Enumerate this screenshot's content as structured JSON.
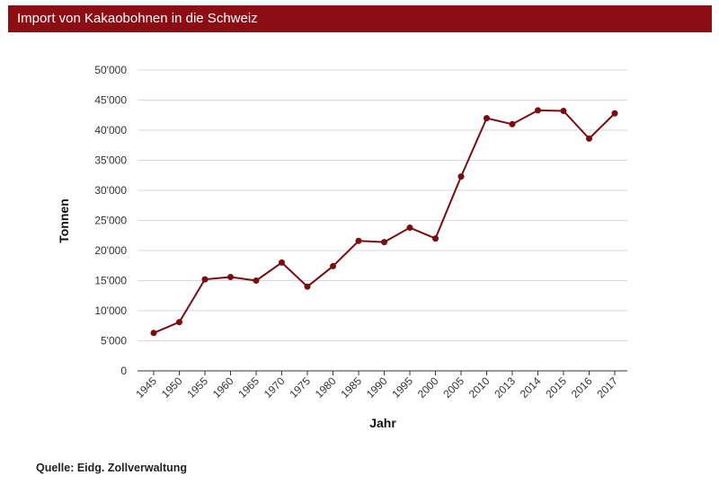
{
  "header": {
    "title": "Import von Kakaobohnen in die Schweiz"
  },
  "footer": {
    "source": "Quelle: Eidg. Zollverwaltung"
  },
  "colors": {
    "header_bg": "#8c0e14",
    "line": "#7a0c10",
    "grid": "#d9d9d9"
  },
  "chart_data": {
    "type": "line",
    "title": "Import von Kakaobohnen in die Schweiz",
    "xlabel": "Jahr",
    "ylabel": "Tonnen",
    "ylim": [
      0,
      50000
    ],
    "yticks": [
      0,
      5000,
      10000,
      15000,
      20000,
      25000,
      30000,
      35000,
      40000,
      45000,
      50000
    ],
    "ytick_labels": [
      "0",
      "5'000",
      "10'000",
      "15'000",
      "20'000",
      "25'000",
      "30'000",
      "35'000",
      "40'000",
      "45'000",
      "50'000"
    ],
    "grid": true,
    "legend": "none",
    "categories": [
      "1945",
      "1950",
      "1955",
      "1960",
      "1965",
      "1970",
      "1975",
      "1980",
      "1985",
      "1990",
      "1995",
      "2000",
      "2005",
      "2010",
      "2013",
      "2014",
      "2015",
      "2016",
      "2017"
    ],
    "series": [
      {
        "values": [
          6300,
          8100,
          15200,
          15600,
          15000,
          18000,
          14000,
          17400,
          21600,
          21400,
          23800,
          22000,
          32300,
          42000,
          41000,
          43300,
          43200,
          38600,
          42800
        ]
      }
    ]
  }
}
